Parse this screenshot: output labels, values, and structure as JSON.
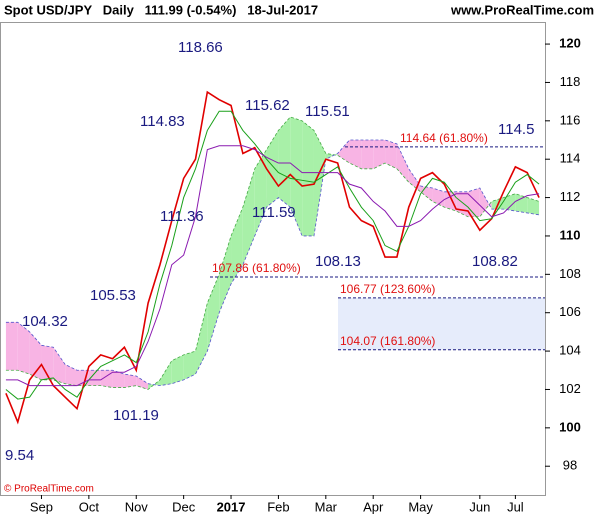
{
  "chart_data": {
    "type": "line",
    "title": "Spot USD/JPY   Daily   111.99 (-0.54%)   18-Jul-2017",
    "source": "www.ProRealTime.com",
    "copyright": "© ProRealTime.com",
    "categories": [
      null,
      null,
      null,
      "Sep",
      null,
      null,
      null,
      "Oct",
      null,
      null,
      null,
      "Nov",
      null,
      null,
      null,
      "Dec",
      null,
      null,
      null,
      "2017",
      null,
      null,
      null,
      "Feb",
      null,
      null,
      null,
      "Mar",
      null,
      null,
      null,
      "Apr",
      null,
      null,
      null,
      "May",
      null,
      null,
      null,
      null,
      "Jun",
      null,
      null,
      "Jul",
      null,
      null
    ],
    "ylim": [
      96.5,
      121.15
    ],
    "yticks": [
      98,
      100,
      102,
      104,
      106,
      108,
      110,
      112,
      114,
      116,
      118,
      120
    ],
    "bold_yticks": [
      100,
      110,
      120
    ],
    "series": [
      {
        "name": "Price",
        "color": "#e00000",
        "values": [
          101.8,
          100.3,
          102.5,
          103.3,
          102.2,
          101.6,
          101.0,
          103.2,
          103.8,
          103.6,
          104.2,
          103.0,
          106.5,
          108.5,
          110.8,
          113.0,
          114.0,
          117.5,
          117.1,
          116.8,
          114.3,
          114.6,
          113.5,
          112.6,
          113.2,
          112.6,
          112.7,
          114.0,
          113.8,
          111.5,
          110.8,
          110.5,
          108.9,
          108.9,
          111.5,
          113.0,
          113.3,
          112.7,
          111.4,
          111.3,
          110.3,
          110.9,
          112.3,
          113.6,
          113.3,
          112.0
        ]
      },
      {
        "name": "Tenkan",
        "color": "#1aa01a",
        "values": [
          102,
          101.5,
          101.6,
          102.5,
          102.6,
          102,
          101.6,
          102.5,
          103.2,
          103.5,
          103.8,
          103.4,
          105,
          107.5,
          109.5,
          112,
          113.5,
          115.5,
          116.5,
          116.5,
          115.5,
          114.8,
          114,
          113.3,
          113,
          112.9,
          112.8,
          113.2,
          113.6,
          112.5,
          111.5,
          110.8,
          109.5,
          109.2,
          110.5,
          112.2,
          113,
          112.8,
          112,
          111.5,
          110.8,
          110.9,
          111.8,
          112.8,
          113.2,
          112.7
        ]
      },
      {
        "name": "Kijun",
        "color": "#8a1ab0",
        "values": [
          102.5,
          102.5,
          102.2,
          102.2,
          102.2,
          102.2,
          102.2,
          102.5,
          102.5,
          102.9,
          102.9,
          103.2,
          104.5,
          106.2,
          108.5,
          109,
          111,
          114.5,
          114.7,
          114.7,
          114.7,
          114.5,
          114.1,
          113.8,
          113.8,
          113.3,
          113.3,
          113.3,
          113.3,
          112.7,
          112.5,
          111.8,
          111.3,
          110.5,
          110.5,
          110.8,
          111.4,
          111.9,
          112.2,
          112.2,
          111.6,
          111,
          111.2,
          111.8,
          112.1,
          112.2
        ]
      }
    ],
    "cloud": {
      "span_a": [
        103,
        103,
        102.8,
        102.5,
        102.5,
        102.3,
        102.2,
        102.2,
        102.2,
        102.1,
        102.1,
        102.2,
        102.0,
        102.5,
        103.5,
        103.8,
        104.0,
        106.5,
        108,
        110,
        111.5,
        113.5,
        114.5,
        115.5,
        116.2,
        116.0,
        115.5,
        114.3,
        114.2,
        113.8,
        113.5,
        113.5,
        113.8,
        113.5,
        112.8,
        112.3,
        111.8,
        111.5,
        111.3,
        111.0,
        111.0,
        111.8,
        112.0,
        112.2,
        112.0,
        111.8
      ],
      "span_b": [
        105.5,
        105.5,
        105,
        104.3,
        104.2,
        103.3,
        103.0,
        103.0,
        103.0,
        103.0,
        102.8,
        102.7,
        102.3,
        102.2,
        102.3,
        102.5,
        102.8,
        104,
        106,
        107.5,
        108.5,
        110,
        111.5,
        112,
        111.5,
        110,
        110,
        114.0,
        114.3,
        115.0,
        115.0,
        115.0,
        115.0,
        114.8,
        113.5,
        112.6,
        112.5,
        112.3,
        112.3,
        112.3,
        112.5,
        111.4,
        111.4,
        111.3,
        111.2,
        111.1
      ],
      "up_color": "#a8f0a8",
      "down_color": "#f8b4e4"
    },
    "annotations": [
      "9.54",
      104.32,
      101.19,
      105.53,
      111.36,
      114.83,
      118.66,
      115.62,
      111.59,
      115.51,
      108.13,
      108.82,
      114.5
    ],
    "fib_levels": [
      {
        "value": 114.64,
        "label": "114.64 (61.80%)"
      },
      {
        "value": 107.86,
        "label": "107.86 (61.80%)"
      },
      {
        "value": 106.77,
        "label": "106.77 (123.60%)"
      },
      {
        "value": 104.07,
        "label": "104.07 (161.80%)"
      }
    ],
    "fib_zone_color": "#e6ecfb"
  }
}
